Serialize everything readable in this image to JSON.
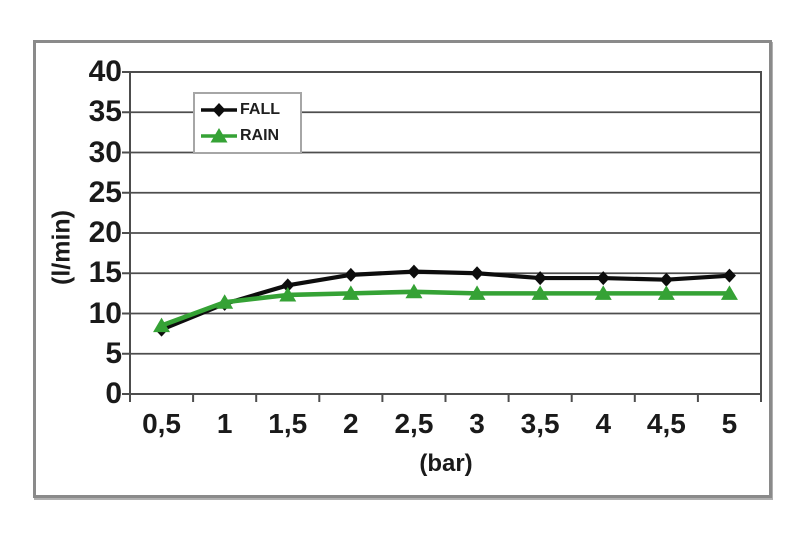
{
  "chart_data": {
    "type": "line",
    "title": "",
    "xlabel": "(bar)",
    "ylabel": "(l/min)",
    "x": [
      0.5,
      1,
      1.5,
      2,
      2.5,
      3,
      3.5,
      4,
      4.5,
      5
    ],
    "x_ticklabels": [
      "0,5",
      "1",
      "1,5",
      "2",
      "2,5",
      "3",
      "3,5",
      "4",
      "4,5",
      "5"
    ],
    "y_ticks": [
      0,
      5,
      10,
      15,
      20,
      25,
      30,
      35,
      40
    ],
    "ylim": [
      0,
      40
    ],
    "grid": "horizontal",
    "legend_position": "top-left-inside",
    "series": [
      {
        "name": "FALL",
        "marker": "diamond",
        "color": "#0d0d0d",
        "values": [
          8.0,
          11.2,
          13.5,
          14.8,
          15.2,
          15.0,
          14.4,
          14.4,
          14.2,
          14.7
        ]
      },
      {
        "name": "RAIN",
        "marker": "triangle",
        "color": "#35a235",
        "values": [
          8.5,
          11.4,
          12.3,
          12.5,
          12.7,
          12.5,
          12.5,
          12.5,
          12.5,
          12.5
        ]
      }
    ],
    "colors": {
      "grid": "#4d4d4d",
      "axis": "#4d4d4d",
      "frame_border": "#8a8a8a",
      "background": "#ffffff",
      "text": "#1a1a1a",
      "legend_border": "#a6a6a6"
    }
  }
}
